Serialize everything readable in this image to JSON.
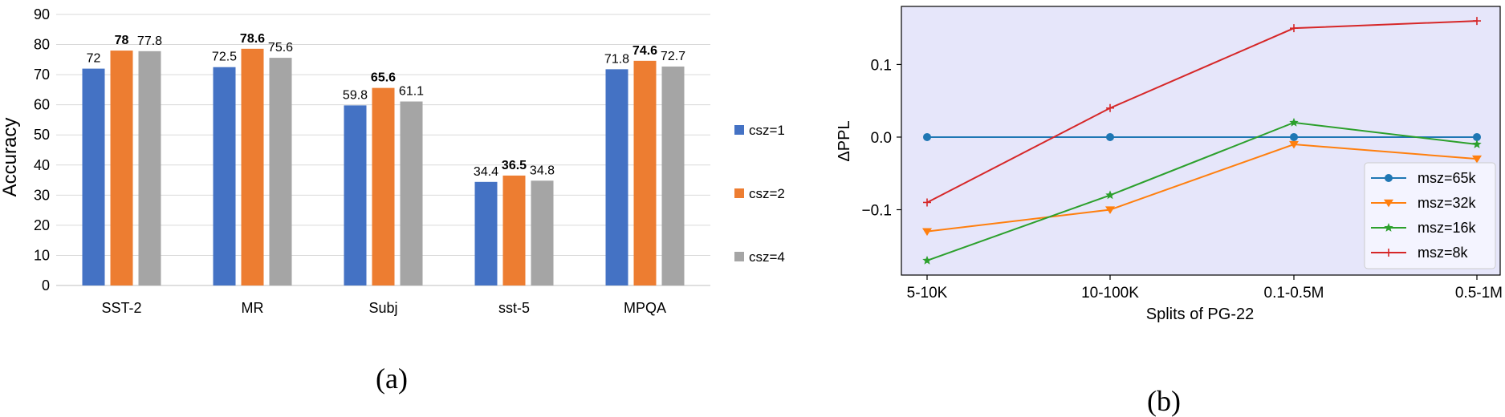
{
  "chart_data": [
    {
      "type": "bar",
      "panel_label": "(a)",
      "ylabel": "Accuracy",
      "ylim": [
        0,
        90
      ],
      "yticks": [
        0,
        10,
        20,
        30,
        40,
        50,
        60,
        70,
        80,
        90
      ],
      "grid": true,
      "legend_position": "right",
      "categories": [
        "SST-2",
        "MR",
        "Subj",
        "sst-5",
        "MPQA"
      ],
      "series": [
        {
          "name": "csz=1",
          "color": "#4472C4",
          "values": [
            72,
            72.5,
            59.8,
            34.4,
            71.8
          ],
          "labels": [
            "72",
            "72.5",
            "59.8",
            "34.4",
            "71.8"
          ]
        },
        {
          "name": "csz=2",
          "color": "#ED7D31",
          "values": [
            78,
            78.6,
            65.6,
            36.5,
            74.6
          ],
          "labels": [
            "78",
            "78.6",
            "65.6",
            "36.5",
            "74.6"
          ]
        },
        {
          "name": "csz=4",
          "color": "#A5A5A5",
          "values": [
            77.8,
            75.6,
            61.1,
            34.8,
            72.7
          ],
          "labels": [
            "77.8",
            "75.6",
            "61.1",
            "34.8",
            "72.7"
          ]
        }
      ],
      "bold_series": "csz=2"
    },
    {
      "type": "line",
      "panel_label": "(b)",
      "xlabel": "Splits of PG-22",
      "ylabel": "ΔPPL",
      "categories": [
        "5-10K",
        "10-100K",
        "0.1-0.5M",
        "0.5-1M"
      ],
      "ylim": [
        -0.19,
        0.18
      ],
      "yticks": [
        -0.1,
        0.0,
        0.1
      ],
      "ytick_labels": [
        "−0.1",
        "0.0",
        "0.1"
      ],
      "grid": false,
      "background": "#E6E6FA",
      "legend_position": "lower-right",
      "series": [
        {
          "name": "msz=65k",
          "color": "#1F77B4",
          "marker": "circle",
          "values": [
            0.0,
            0.0,
            0.0,
            0.0
          ]
        },
        {
          "name": "msz=32k",
          "color": "#FF7F0E",
          "marker": "triangle-down",
          "values": [
            -0.13,
            -0.1,
            -0.01,
            -0.03
          ]
        },
        {
          "name": "msz=16k",
          "color": "#2CA02C",
          "marker": "star",
          "values": [
            -0.17,
            -0.08,
            0.02,
            -0.01
          ]
        },
        {
          "name": "msz=8k",
          "color": "#D62728",
          "marker": "plus",
          "values": [
            -0.09,
            0.04,
            0.15,
            0.16
          ]
        }
      ]
    }
  ]
}
